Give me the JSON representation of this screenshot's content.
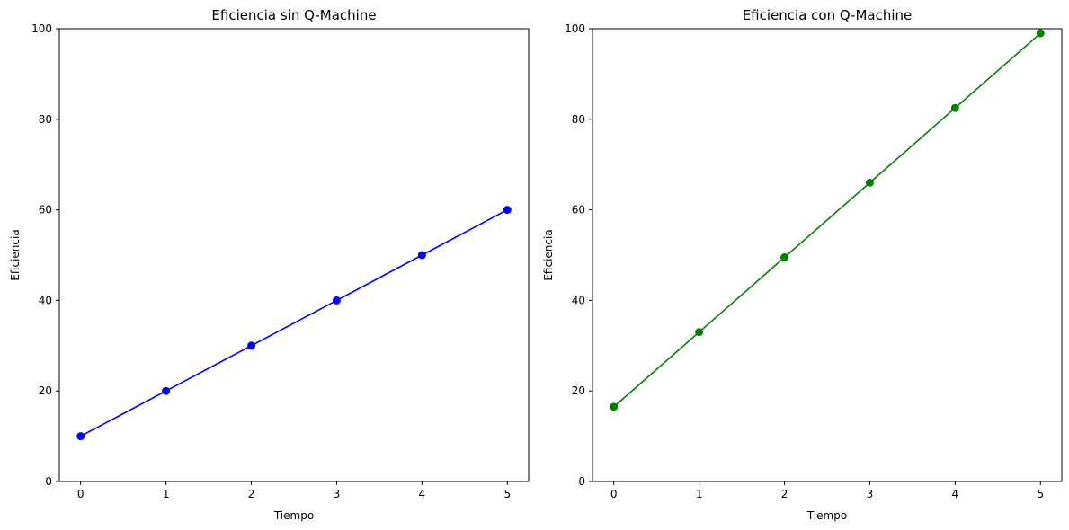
{
  "chart_data": [
    {
      "type": "line",
      "title": "Eficiencia sin Q-Machine",
      "xlabel": "Tiempo",
      "ylabel": "Eficiencia",
      "x": [
        0,
        1,
        2,
        3,
        4,
        5
      ],
      "xticks": [
        "0",
        "1",
        "2",
        "3",
        "4",
        "5"
      ],
      "yticks": [
        "0",
        "20",
        "40",
        "60",
        "80",
        "100"
      ],
      "xlim": [
        -0.25,
        5.25
      ],
      "ylim": [
        0,
        100
      ],
      "grid": false,
      "series": [
        {
          "values": [
            10,
            20,
            30,
            40,
            50,
            60
          ],
          "color": "#0000ff",
          "marker": "circle"
        }
      ]
    },
    {
      "type": "line",
      "title": "Eficiencia con Q-Machine",
      "xlabel": "Tiempo",
      "ylabel": "Eficiencia",
      "x": [
        0,
        1,
        2,
        3,
        4,
        5
      ],
      "xticks": [
        "0",
        "1",
        "2",
        "3",
        "4",
        "5"
      ],
      "yticks": [
        "0",
        "20",
        "40",
        "60",
        "80",
        "100"
      ],
      "xlim": [
        -0.25,
        5.25
      ],
      "ylim": [
        0,
        100
      ],
      "grid": false,
      "series": [
        {
          "values": [
            16.5,
            33,
            49.5,
            66,
            82.5,
            99
          ],
          "color": "#008000",
          "marker": "circle"
        }
      ]
    }
  ]
}
